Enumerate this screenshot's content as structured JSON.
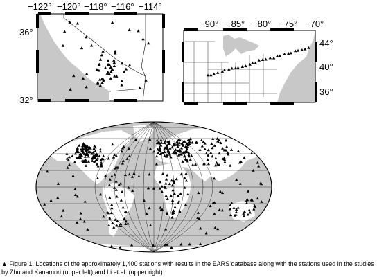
{
  "maps": {
    "left": {
      "lon_labels": [
        "−122°",
        "−120°",
        "−118°",
        "−116°",
        "−114°"
      ],
      "lat_labels": [
        "36°",
        "32°"
      ],
      "lon_range": [
        -123,
        -113.5
      ],
      "lat_range": [
        32,
        37.5
      ]
    },
    "right": {
      "lon_labels": [
        "−90°",
        "−85°",
        "−80°",
        "−75°",
        "−70°"
      ],
      "lat_labels": [
        "44°",
        "40°",
        "36°"
      ],
      "lon_range": [
        -95,
        -68
      ],
      "lat_range": [
        34,
        46
      ]
    },
    "world": {
      "projection": "robinson"
    }
  },
  "colors": {
    "land": "#ffffff",
    "ocean": "#c8c8c8",
    "station": "#000000"
  },
  "caption": {
    "marker": "▲",
    "text": "Figure 1. Locations of the approximately 1,400 stations with results in the EARS database along with the stations used in the studies by Zhu and Kanamori (upper left) and Li et al. (upper right)."
  }
}
